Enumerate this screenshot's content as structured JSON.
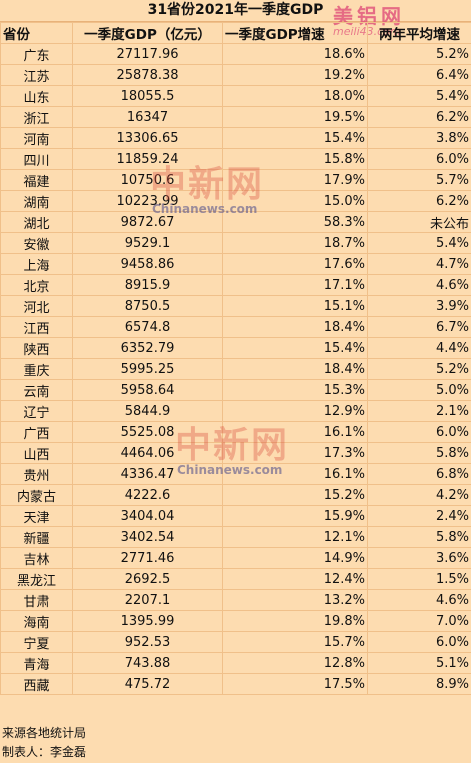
{
  "title": "31省份2021年一季度GDP",
  "headers": {
    "province": "省份",
    "gdp": "一季度GDP（亿元）",
    "growth": "一季度GDP增速",
    "two_year": "两年平均增速"
  },
  "rows": [
    {
      "province": "广东",
      "gdp": "27117.96",
      "growth": "18.6%",
      "two_year": "5.2%"
    },
    {
      "province": "江苏",
      "gdp": "25878.38",
      "growth": "19.2%",
      "two_year": "6.4%"
    },
    {
      "province": "山东",
      "gdp": "18055.5",
      "growth": "18.0%",
      "two_year": "5.4%"
    },
    {
      "province": "浙江",
      "gdp": "16347",
      "growth": "19.5%",
      "two_year": "6.2%"
    },
    {
      "province": "河南",
      "gdp": "13306.65",
      "growth": "15.4%",
      "two_year": "3.8%"
    },
    {
      "province": "四川",
      "gdp": "11859.24",
      "growth": "15.8%",
      "two_year": "6.0%"
    },
    {
      "province": "福建",
      "gdp": "10750.6",
      "growth": "17.9%",
      "two_year": "5.7%"
    },
    {
      "province": "湖南",
      "gdp": "10223.99",
      "growth": "15.0%",
      "two_year": "6.2%"
    },
    {
      "province": "湖北",
      "gdp": "9872.67",
      "growth": "58.3%",
      "two_year": "未公布"
    },
    {
      "province": "安徽",
      "gdp": "9529.1",
      "growth": "18.7%",
      "two_year": "5.4%"
    },
    {
      "province": "上海",
      "gdp": "9458.86",
      "growth": "17.6%",
      "two_year": "4.7%"
    },
    {
      "province": "北京",
      "gdp": "8915.9",
      "growth": "17.1%",
      "two_year": "4.6%"
    },
    {
      "province": "河北",
      "gdp": "8750.5",
      "growth": "15.1%",
      "two_year": "3.9%"
    },
    {
      "province": "江西",
      "gdp": "6574.8",
      "growth": "18.4%",
      "two_year": "6.7%"
    },
    {
      "province": "陕西",
      "gdp": "6352.79",
      "growth": "15.4%",
      "two_year": "4.4%"
    },
    {
      "province": "重庆",
      "gdp": "5995.25",
      "growth": "18.4%",
      "two_year": "5.2%"
    },
    {
      "province": "云南",
      "gdp": "5958.64",
      "growth": "15.3%",
      "two_year": "5.0%"
    },
    {
      "province": "辽宁",
      "gdp": "5844.9",
      "growth": "12.9%",
      "two_year": "2.1%"
    },
    {
      "province": "广西",
      "gdp": "5525.08",
      "growth": "16.1%",
      "two_year": "6.0%"
    },
    {
      "province": "山西",
      "gdp": "4464.06",
      "growth": "17.3%",
      "two_year": "5.8%"
    },
    {
      "province": "贵州",
      "gdp": "4336.47",
      "growth": "16.1%",
      "two_year": "6.8%"
    },
    {
      "province": "内蒙古",
      "gdp": "4222.6",
      "growth": "15.2%",
      "two_year": "4.2%"
    },
    {
      "province": "天津",
      "gdp": "3404.04",
      "growth": "15.9%",
      "two_year": "2.4%"
    },
    {
      "province": "新疆",
      "gdp": "3402.54",
      "growth": "12.1%",
      "two_year": "5.8%"
    },
    {
      "province": "吉林",
      "gdp": "2771.46",
      "growth": "14.9%",
      "two_year": "3.6%"
    },
    {
      "province": "黑龙江",
      "gdp": "2692.5",
      "growth": "12.4%",
      "two_year": "1.5%"
    },
    {
      "province": "甘肃",
      "gdp": "2207.1",
      "growth": "13.2%",
      "two_year": "4.6%"
    },
    {
      "province": "海南",
      "gdp": "1395.99",
      "growth": "19.8%",
      "two_year": "7.0%"
    },
    {
      "province": "宁夏",
      "gdp": "952.53",
      "growth": "15.7%",
      "two_year": "6.0%"
    },
    {
      "province": "青海",
      "gdp": "743.88",
      "growth": "12.8%",
      "two_year": "5.1%"
    },
    {
      "province": "西藏",
      "gdp": "475.72",
      "growth": "17.5%",
      "two_year": "8.9%"
    }
  ],
  "footer": {
    "source": "来源各地统计局",
    "author": "制表人：李金磊"
  },
  "watermarks": {
    "logo_text": "美铝网",
    "logo_url": "meili43.com",
    "chinanews_cn": "中新网",
    "chinanews_en": "Chinanews.com"
  },
  "colors": {
    "background": "#fddcb0",
    "grid": "#f0c08a"
  }
}
